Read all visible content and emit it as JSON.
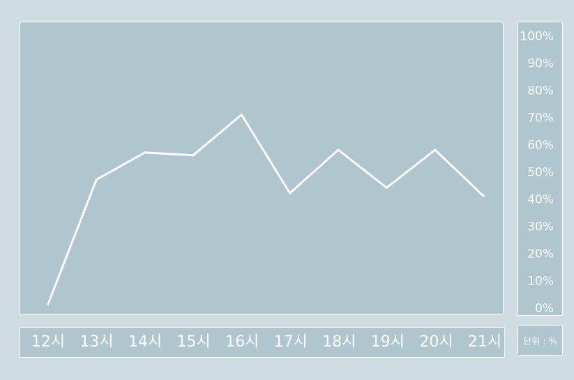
{
  "chart_data": {
    "type": "line",
    "categories": [
      "12시",
      "13시",
      "14시",
      "15시",
      "16시",
      "17시",
      "18시",
      "19시",
      "20시",
      "21시"
    ],
    "series": [
      {
        "values": [
          1,
          47,
          57,
          56,
          71,
          42,
          58,
          44,
          58,
          41
        ]
      }
    ],
    "yticks": [
      "100%",
      "90%",
      "80%",
      "70%",
      "60%",
      "50%",
      "40%",
      "30%",
      "20%",
      "10%",
      "0%"
    ],
    "ylim": [
      0,
      100
    ],
    "unit_label": "단위 : %",
    "grid": false,
    "line_color": "#ffffff",
    "panel_color": "#b0c6ce",
    "background_color": "#cfdce2"
  }
}
